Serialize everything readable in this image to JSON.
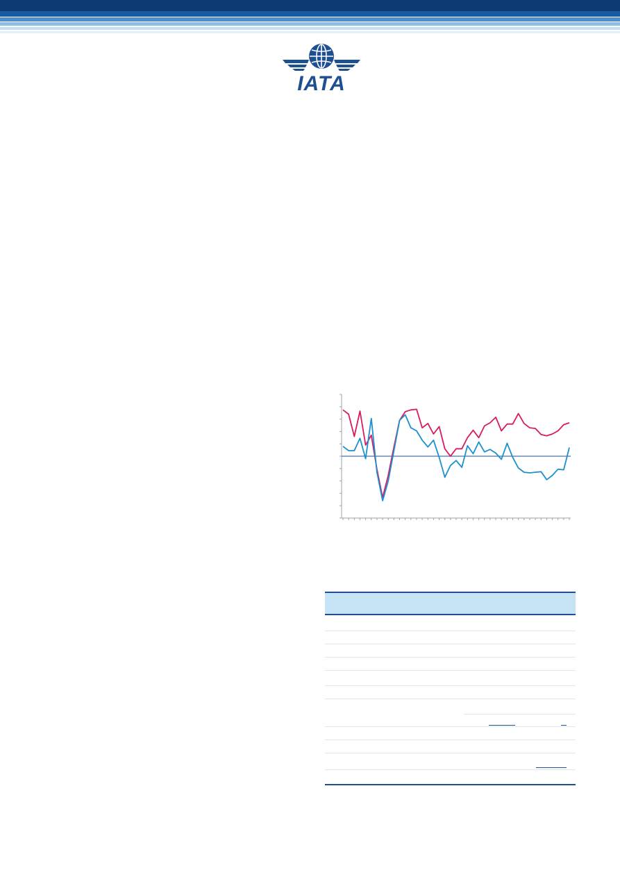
{
  "header": {
    "logo": {
      "icon": "iata-globe-wings-icon",
      "text": "IATA"
    },
    "band_colors": [
      "#0b3a73",
      "#1a5aa0",
      "#4f8fd0",
      "#8fbde8",
      "#c4def4",
      "#e3f0fa"
    ]
  },
  "chart_data": {
    "type": "line",
    "title": "",
    "xlabel": "",
    "ylabel": "",
    "grid": false,
    "zero_line": true,
    "ylim": [
      -10,
      10
    ],
    "series": [
      {
        "color": "#d81b60",
        "values": [
          7.5,
          6.8,
          3.2,
          7.3,
          1.8,
          3.4,
          -2.1,
          -6.7,
          -3.1,
          1.5,
          5.8,
          7.2,
          7.5,
          7.6,
          4.6,
          5.3,
          3.6,
          4.8,
          1.2,
          0.0,
          1.2,
          1.2,
          3.0,
          4.2,
          3.0,
          4.9,
          5.4,
          6.3,
          4.1,
          5.2,
          5.2,
          6.9,
          5.3,
          4.6,
          4.5,
          3.5,
          3.3,
          3.6,
          4.1,
          5.1,
          5.4
        ]
      },
      {
        "color": "#1c8fd0",
        "values": [
          1.6,
          0.9,
          0.9,
          2.9,
          -0.4,
          6.1,
          -2.6,
          -7.2,
          -4.0,
          0.9,
          5.8,
          6.7,
          4.6,
          4.1,
          2.6,
          1.5,
          2.6,
          -0.2,
          -3.4,
          -1.5,
          -0.7,
          -1.8,
          1.7,
          0.4,
          2.3,
          0.7,
          1.1,
          0.5,
          -0.5,
          2.1,
          -0.2,
          -1.9,
          -2.6,
          -2.7,
          -2.6,
          -2.5,
          -3.8,
          -3.1,
          -2.1,
          -2.2,
          1.4
        ]
      }
    ]
  },
  "table": {
    "header_color": "#c6e3f6",
    "rule_color": "#1d4f91",
    "row_count": 11
  }
}
